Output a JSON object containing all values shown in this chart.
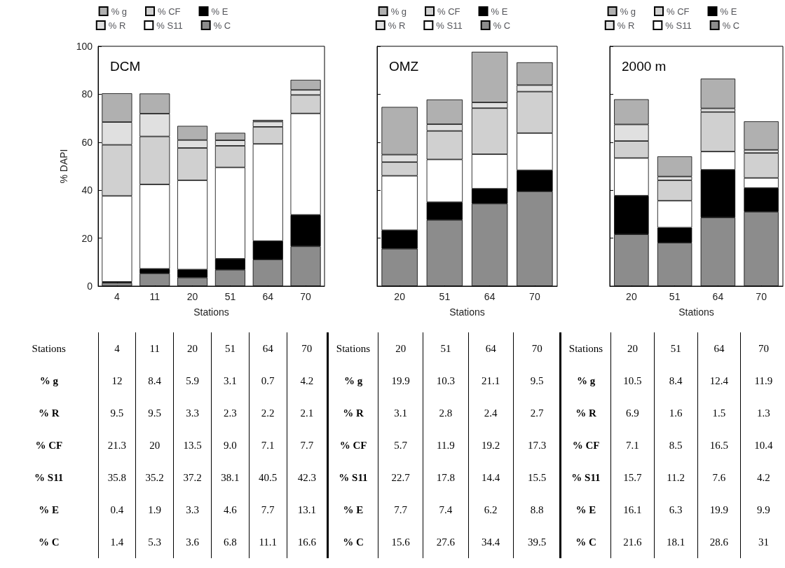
{
  "chart_data": [
    {
      "type": "bar",
      "stacked": true,
      "title": "DCM",
      "xlabel": "Stations",
      "ylabel": "% DAPI",
      "categories": [
        "4",
        "11",
        "20",
        "51",
        "64",
        "70"
      ],
      "ylim": [
        0,
        100
      ],
      "yticks": [
        0,
        20,
        40,
        60,
        80,
        100
      ],
      "legend": "top",
      "grid": false,
      "data_labels": true,
      "series": [
        {
          "name": "% C",
          "color": "#8c8c8c",
          "values": [
            1.4,
            5.3,
            3.6,
            6.8,
            11.1,
            16.6
          ]
        },
        {
          "name": "% E",
          "color": "#000000",
          "values": [
            0.4,
            1.9,
            3.3,
            4.6,
            7.7,
            13.1
          ]
        },
        {
          "name": "% S11",
          "color": "#ffffff",
          "values": [
            35.8,
            35.2,
            37.2,
            38.1,
            40.5,
            42.3
          ]
        },
        {
          "name": "% CF",
          "color": "#d0d0d0",
          "values": [
            21.3,
            20,
            13.5,
            9.0,
            7.1,
            7.7
          ],
          "value_labels": [
            "21.3",
            "20",
            "13.5",
            "9.0",
            "7.1",
            "7.7"
          ]
        },
        {
          "name": "% R",
          "color": "#e0e0e0",
          "values": [
            9.5,
            9.5,
            3.3,
            2.3,
            2.2,
            2.1
          ]
        },
        {
          "name": "% g",
          "color": "#b0b0b0",
          "values": [
            12,
            8.4,
            5.9,
            3.1,
            0.7,
            4.2
          ]
        }
      ]
    },
    {
      "type": "bar",
      "stacked": true,
      "title": "OMZ",
      "xlabel": "Stations",
      "categories": [
        "20",
        "51",
        "64",
        "70"
      ],
      "ylim": [
        0,
        100
      ],
      "yticks": [
        0,
        20,
        40,
        60,
        80,
        100
      ],
      "tick_labels": "x",
      "legend": "top",
      "grid": false,
      "data_labels": true,
      "series": [
        {
          "name": "% C",
          "color": "#8c8c8c",
          "values": [
            15.6,
            27.6,
            34.4,
            39.5
          ]
        },
        {
          "name": "% E",
          "color": "#000000",
          "values": [
            7.7,
            7.4,
            6.2,
            8.8
          ]
        },
        {
          "name": "% S11",
          "color": "#ffffff",
          "values": [
            22.7,
            17.8,
            14.4,
            15.5
          ]
        },
        {
          "name": "% CF",
          "color": "#d0d0d0",
          "values": [
            5.7,
            11.9,
            19.2,
            17.3
          ]
        },
        {
          "name": "% R",
          "color": "#e0e0e0",
          "values": [
            3.1,
            2.8,
            2.4,
            2.7
          ]
        },
        {
          "name": "% g",
          "color": "#b0b0b0",
          "values": [
            19.9,
            10.3,
            21.1,
            9.5
          ]
        }
      ]
    },
    {
      "type": "bar",
      "stacked": true,
      "title": "2000 m",
      "xlabel": "Stations",
      "categories": [
        "20",
        "51",
        "64",
        "70"
      ],
      "ylim": [
        0,
        100
      ],
      "yticks": [
        0,
        20,
        40,
        60,
        80,
        100
      ],
      "tick_labels": "x",
      "legend": "top",
      "grid": false,
      "data_labels": true,
      "series": [
        {
          "name": "% C",
          "color": "#8c8c8c",
          "values": [
            21.6,
            18.1,
            28.6,
            31
          ]
        },
        {
          "name": "% E",
          "color": "#000000",
          "values": [
            16.1,
            6.3,
            19.9,
            9.9
          ]
        },
        {
          "name": "% S11",
          "color": "#ffffff",
          "values": [
            15.7,
            11.2,
            7.6,
            4.2
          ]
        },
        {
          "name": "% CF",
          "color": "#d0d0d0",
          "values": [
            7.1,
            8.5,
            16.5,
            10.4
          ]
        },
        {
          "name": "% R",
          "color": "#e0e0e0",
          "values": [
            6.9,
            1.6,
            1.5,
            1.3
          ]
        },
        {
          "name": "% g",
          "color": "#b0b0b0",
          "values": [
            10.5,
            8.4,
            12.4,
            11.9
          ]
        }
      ]
    }
  ]
}
